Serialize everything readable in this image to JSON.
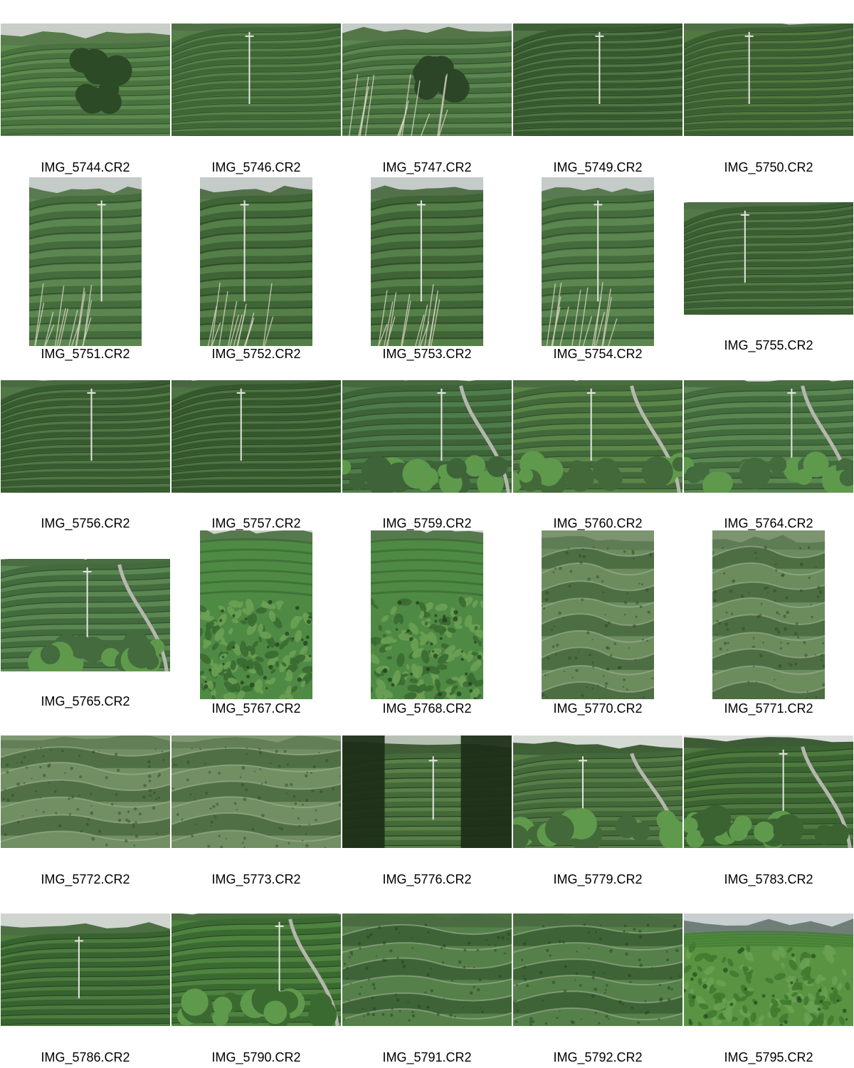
{
  "contact_sheet": {
    "rows": [
      {
        "cells": [
          {
            "label": "IMG_5744.CR2",
            "orientation": "landscape",
            "scene": "terrace-trees",
            "palette": {
              "sky": "#c9cfc8",
              "far": "#587b4c",
              "field": "#5d8a4e",
              "row": "#4a7240",
              "dark": "#2c4a25"
            }
          },
          {
            "label": "IMG_5746.CR2",
            "orientation": "landscape",
            "scene": "rows",
            "palette": {
              "sky": "#c2c8c4",
              "far": "#4f7046",
              "field": "#557f48",
              "row": "#3f6636",
              "dark": "#2a4423"
            }
          },
          {
            "label": "IMG_5747.CR2",
            "orientation": "landscape",
            "scene": "terrace-grass",
            "palette": {
              "sky": "#c6ccc8",
              "far": "#557648",
              "field": "#5c8650",
              "row": "#466d3d",
              "dark": "#2b4526"
            }
          },
          {
            "label": "IMG_5749.CR2",
            "orientation": "landscape",
            "scene": "rows",
            "palette": {
              "sky": "#4e6e45",
              "far": "#3f5f37",
              "field": "#4f7644",
              "row": "#36582e",
              "dark": "#22391d"
            }
          },
          {
            "label": "IMG_5750.CR2",
            "orientation": "landscape",
            "scene": "rows",
            "palette": {
              "sky": "#bfc6c2",
              "far": "#4f6e45",
              "field": "#52793f",
              "row": "#3b5f32",
              "dark": "#253e20"
            }
          }
        ]
      },
      {
        "cells": [
          {
            "label": "IMG_5751.CR2",
            "orientation": "portrait",
            "scene": "valley",
            "palette": {
              "sky": "#c5cbc9",
              "far": "#5a7a52",
              "field": "#5b8650",
              "row": "#456c3c",
              "dark": "#2b4527"
            }
          },
          {
            "label": "IMG_5752.CR2",
            "orientation": "portrait",
            "scene": "valley",
            "palette": {
              "sky": "#c5cbc9",
              "far": "#52714a",
              "field": "#557f48",
              "row": "#3f6436",
              "dark": "#283f22"
            }
          },
          {
            "label": "IMG_5753.CR2",
            "orientation": "portrait",
            "scene": "valley",
            "palette": {
              "sky": "#c5cbc9",
              "far": "#52714a",
              "field": "#557f48",
              "row": "#3f6436",
              "dark": "#283f22"
            }
          },
          {
            "label": "IMG_5754.CR2",
            "orientation": "portrait",
            "scene": "valley",
            "palette": {
              "sky": "#c5cbc9",
              "far": "#5a7a52",
              "field": "#5b8650",
              "row": "#456c3c",
              "dark": "#2b4527"
            }
          },
          {
            "label": "IMG_5755.CR2",
            "orientation": "landscape",
            "scene": "rows",
            "palette": {
              "sky": "#c3c9c5",
              "far": "#4e6e45",
              "field": "#527a46",
              "row": "#3a5d31",
              "dark": "#233b1e"
            }
          }
        ]
      },
      {
        "cells": [
          {
            "label": "IMG_5756.CR2",
            "orientation": "landscape",
            "scene": "rows",
            "palette": {
              "sky": "#c0c7c2",
              "far": "#4b6a42",
              "field": "#517844",
              "row": "#385a30",
              "dark": "#223a1d"
            }
          },
          {
            "label": "IMG_5757.CR2",
            "orientation": "landscape",
            "scene": "rows",
            "palette": {
              "sky": "#bec5c0",
              "far": "#486740",
              "field": "#4d7441",
              "row": "#35572d",
              "dark": "#20371b"
            }
          },
          {
            "label": "IMG_5759.CR2",
            "orientation": "landscape",
            "scene": "field-path",
            "palette": {
              "sky": "#d3d8d3",
              "far": "#46693f",
              "field": "#4f7c4b",
              "row": "#3e6339",
              "dark": "#2a4626"
            }
          },
          {
            "label": "IMG_5760.CR2",
            "orientation": "landscape",
            "scene": "field-path",
            "palette": {
              "sky": "#cfd5cf",
              "far": "#4b6d41",
              "field": "#5a8649",
              "row": "#43693a",
              "dark": "#2d4828"
            }
          },
          {
            "label": "IMG_5764.CR2",
            "orientation": "landscape",
            "scene": "field-path",
            "palette": {
              "sky": "#d6dbd7",
              "far": "#4a6d43",
              "field": "#5a8752",
              "row": "#436b3e",
              "dark": "#2c4829"
            }
          }
        ]
      },
      {
        "cells": [
          {
            "label": "IMG_5765.CR2",
            "orientation": "landscape",
            "scene": "field-path",
            "palette": {
              "sky": "#d6dbd7",
              "far": "#4a6d43",
              "field": "#5a8752",
              "row": "#436b3e",
              "dark": "#2c4829"
            }
          },
          {
            "label": "IMG_5767.CR2",
            "orientation": "portrait",
            "scene": "leaves",
            "palette": {
              "sky": "#cdd3cd",
              "far": "#567a4e",
              "field": "#4f8a45",
              "row": "#3a6a32",
              "dark": "#1f3b1a"
            }
          },
          {
            "label": "IMG_5768.CR2",
            "orientation": "portrait",
            "scene": "leaves",
            "palette": {
              "sky": "#cdd3cd",
              "far": "#567a4e",
              "field": "#4f8a45",
              "row": "#3a6a32",
              "dark": "#1f3b1a"
            }
          },
          {
            "label": "IMG_5770.CR2",
            "orientation": "portrait",
            "scene": "hedges",
            "palette": {
              "sky": "#7c9570",
              "far": "#5f7d55",
              "field": "#6c8c5e",
              "row": "#4d6d42",
              "dark": "#2e4728"
            }
          },
          {
            "label": "IMG_5771.CR2",
            "orientation": "portrait",
            "scene": "hedges",
            "palette": {
              "sky": "#7c9570",
              "far": "#5f7d55",
              "field": "#6c8c5e",
              "row": "#4d6d42",
              "dark": "#2e4728"
            }
          }
        ]
      },
      {
        "cells": [
          {
            "label": "IMG_5772.CR2",
            "orientation": "landscape",
            "scene": "hedges",
            "palette": {
              "sky": "#7f9773",
              "far": "#627f58",
              "field": "#728f64",
              "row": "#506f45",
              "dark": "#31492a"
            }
          },
          {
            "label": "IMG_5773.CR2",
            "orientation": "landscape",
            "scene": "hedges",
            "palette": {
              "sky": "#7f9773",
              "far": "#627f58",
              "field": "#728f64",
              "row": "#506f45",
              "dark": "#31492a"
            }
          },
          {
            "label": "IMG_5776.CR2",
            "orientation": "landscape",
            "scene": "dark-frame",
            "palette": {
              "sky": "#b7c0b4",
              "far": "#3f5c36",
              "field": "#5a8048",
              "row": "#446a3a",
              "dark": "#1c2e18"
            }
          },
          {
            "label": "IMG_5779.CR2",
            "orientation": "landscape",
            "scene": "valley-wide",
            "palette": {
              "sky": "#d5d9d4",
              "far": "#3f5f37",
              "field": "#587e48",
              "row": "#43683a",
              "dark": "#263f20"
            }
          },
          {
            "label": "IMG_5783.CR2",
            "orientation": "landscape",
            "scene": "hedge-road",
            "palette": {
              "sky": "#dcdfdb",
              "far": "#3d5c36",
              "field": "#4e7a40",
              "row": "#3b6332",
              "dark": "#243d1f"
            }
          }
        ]
      },
      {
        "cells": [
          {
            "label": "IMG_5786.CR2",
            "orientation": "landscape",
            "scene": "slope",
            "palette": {
              "sky": "#d0d5d0",
              "far": "#4d6f44",
              "field": "#4d7c3f",
              "row": "#386330",
              "dark": "#213b1c"
            }
          },
          {
            "label": "IMG_5790.CR2",
            "orientation": "landscape",
            "scene": "field-path",
            "palette": {
              "sky": "#cdd3cd",
              "far": "#4a6d41",
              "field": "#4f8340",
              "row": "#3b6a31",
              "dark": "#244020"
            }
          },
          {
            "label": "IMG_5791.CR2",
            "orientation": "landscape",
            "scene": "hedges",
            "palette": {
              "sky": "#4d7044",
              "far": "#4a6c41",
              "field": "#56804a",
              "row": "#3d6336",
              "dark": "#25401f"
            }
          },
          {
            "label": "IMG_5792.CR2",
            "orientation": "landscape",
            "scene": "hedges",
            "palette": {
              "sky": "#4d7044",
              "far": "#4a6c41",
              "field": "#56804a",
              "row": "#3d6336",
              "dark": "#25401f"
            }
          },
          {
            "label": "IMG_5795.CR2",
            "orientation": "landscape",
            "scene": "leaves-wide",
            "palette": {
              "sky": "#c9ced0",
              "far": "#6f7f78",
              "field": "#5a9443",
              "row": "#3f7a30",
              "dark": "#244a1c"
            }
          }
        ]
      }
    ]
  }
}
